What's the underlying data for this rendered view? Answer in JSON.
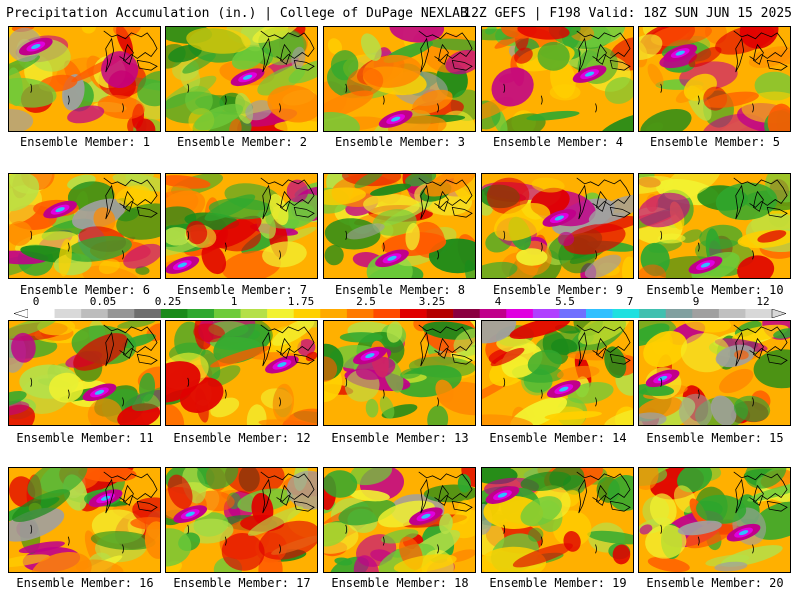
{
  "header": {
    "title_left": "Precipitation Accumulation (in.) | College of DuPage NEXLAB",
    "title_right": "12Z GEFS | F198 Valid: 18Z SUN JUN 15 2025"
  },
  "colorbar": {
    "labels": [
      "0",
      "0.05",
      "0.25",
      "1",
      "1.75",
      "2.5",
      "3.25",
      "4",
      "5.5",
      "7",
      "9",
      "12"
    ],
    "colors": [
      "#ffffff",
      "#d9d9d9",
      "#bdbdbd",
      "#969696",
      "#6e6e6e",
      "#1a8a1a",
      "#2fa82f",
      "#6ecb3a",
      "#b5e048",
      "#f2f230",
      "#ffd000",
      "#ffaa00",
      "#ff7a00",
      "#ff4a00",
      "#e00000",
      "#b40000",
      "#8a0040",
      "#c0008a",
      "#e000e0",
      "#b040ff",
      "#7070ff",
      "#30c0ff",
      "#20e0e0",
      "#40c0b0",
      "#80a0a0",
      "#a0a0a0",
      "#c0c0c0",
      "#d8d8d8"
    ]
  },
  "members": [
    {
      "caption": "Ensemble Member: 1",
      "style": 1
    },
    {
      "caption": "Ensemble Member: 2",
      "style": 2
    },
    {
      "caption": "Ensemble Member: 3",
      "style": 3
    },
    {
      "caption": "Ensemble Member: 4",
      "style": 4
    },
    {
      "caption": "Ensemble Member: 5",
      "style": 5
    },
    {
      "caption": "Ensemble Member: 6",
      "style": 6
    },
    {
      "caption": "Ensemble Member: 7",
      "style": 7
    },
    {
      "caption": "Ensemble Member: 8",
      "style": 8
    },
    {
      "caption": "Ensemble Member: 9",
      "style": 9
    },
    {
      "caption": "Ensemble Member: 10",
      "style": 10
    },
    {
      "caption": "Ensemble Member: 11",
      "style": 11
    },
    {
      "caption": "Ensemble Member: 12",
      "style": 12
    },
    {
      "caption": "Ensemble Member: 13",
      "style": 13
    },
    {
      "caption": "Ensemble Member: 14",
      "style": 14
    },
    {
      "caption": "Ensemble Member: 15",
      "style": 15
    },
    {
      "caption": "Ensemble Member: 16",
      "style": 16
    },
    {
      "caption": "Ensemble Member: 17",
      "style": 17
    },
    {
      "caption": "Ensemble Member: 18",
      "style": 18
    },
    {
      "caption": "Ensemble Member: 19",
      "style": 19
    },
    {
      "caption": "Ensemble Member: 20",
      "style": 20
    }
  ]
}
